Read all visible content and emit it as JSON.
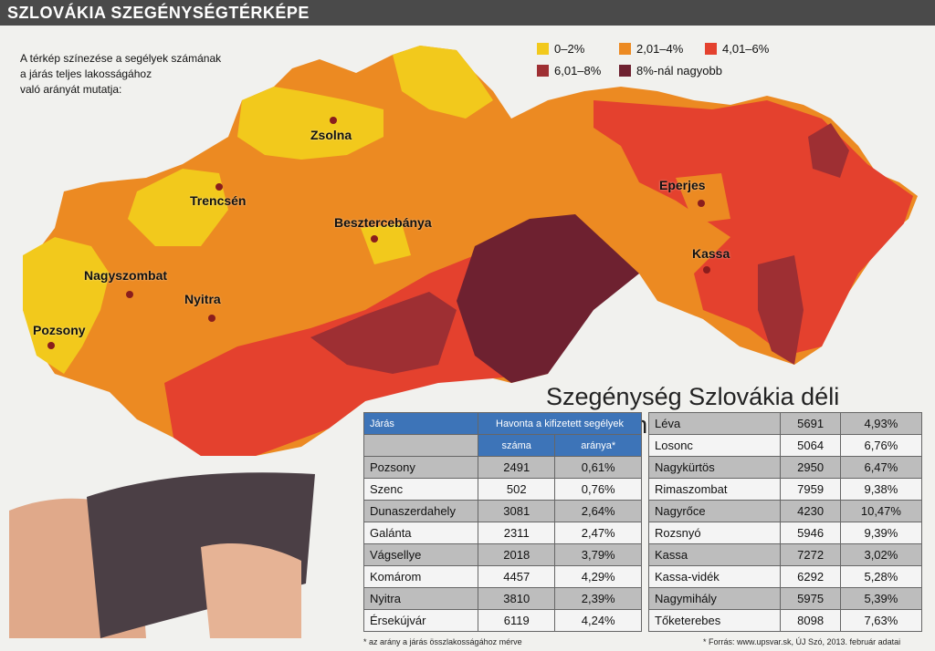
{
  "header": {
    "title": "SZLOVÁKIA SZEGÉNYSÉGTÉRKÉPE"
  },
  "description": [
    "A térkép színezése a segélyek számának",
    "a járás teljes lakosságához",
    "való arányát mutatja:"
  ],
  "legend": [
    {
      "label": "0–2%",
      "color": "#f2c91c"
    },
    {
      "label": "2,01–4%",
      "color": "#ec8a22"
    },
    {
      "label": "4,01–6%",
      "color": "#e4412e"
    },
    {
      "label": "6,01–8%",
      "color": "#9e2f33"
    },
    {
      "label": "8%-nál nagyobb",
      "color": "#6e2130"
    }
  ],
  "cities": [
    "Zsolna",
    "Trencsén",
    "Besztercebánya",
    "Eperjes",
    "Kassa",
    "Nagyszombat",
    "Nyitra",
    "Pozsony"
  ],
  "subtitle": "Szegénység Szlovákia déli régióiban",
  "table_left": {
    "header": [
      "Járás",
      "Havonta a kifizetett segélyek",
      "száma",
      "aránya*"
    ],
    "rows": [
      [
        "Pozsony",
        "2491",
        "0,61%"
      ],
      [
        "Szenc",
        "502",
        "0,76%"
      ],
      [
        "Dunaszerdahely",
        "3081",
        "2,64%"
      ],
      [
        "Galánta",
        "2311",
        "2,47%"
      ],
      [
        "Vágsellye",
        "2018",
        "3,79%"
      ],
      [
        "Komárom",
        "4457",
        "4,29%"
      ],
      [
        "Nyitra",
        "3810",
        "2,39%"
      ],
      [
        "Érsekújvár",
        "6119",
        "4,24%"
      ]
    ]
  },
  "table_right": {
    "rows": [
      [
        "Léva",
        "5691",
        "4,93%"
      ],
      [
        "Losonc",
        "5064",
        "6,76%"
      ],
      [
        "Nagykürtös",
        "2950",
        "6,47%"
      ],
      [
        "Rimaszombat",
        "7959",
        "9,38%"
      ],
      [
        "Nagyrőce",
        "4230",
        "10,47%"
      ],
      [
        "Rozsnyó",
        "5946",
        "9,39%"
      ],
      [
        "Kassa",
        "7272",
        "3,02%"
      ],
      [
        "Kassa-vidék",
        "6292",
        "5,28%"
      ],
      [
        "Nagymihály",
        "5975",
        "5,39%"
      ],
      [
        "Tőketerebes",
        "8098",
        "7,63%"
      ]
    ]
  },
  "footnotes": [
    "* az arány a járás összlakosságához mérve",
    "* Forrás: www.upsvar.sk, ÚJ Szó, 2013. február adatai"
  ]
}
